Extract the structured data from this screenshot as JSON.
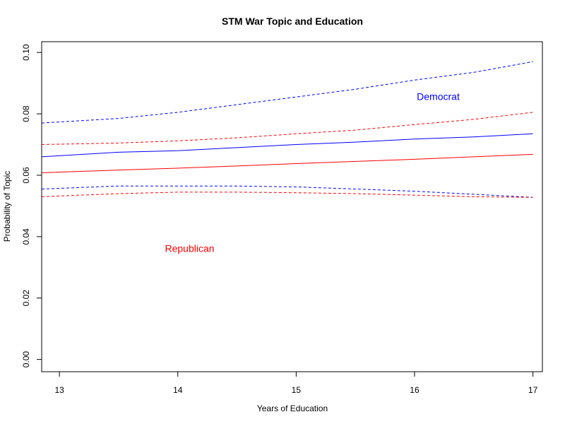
{
  "chart_data": {
    "type": "line",
    "title": "STM War Topic and Education",
    "xlabel": "Years of Education",
    "ylabel": "Probability of Topic",
    "xlim": [
      12.85,
      17.08
    ],
    "ylim": [
      -0.004,
      0.1035
    ],
    "x_ticks": [
      13,
      14,
      15,
      16,
      17
    ],
    "y_ticks": [
      0.0,
      0.02,
      0.04,
      0.06,
      0.08,
      0.1
    ],
    "y_tick_labels": [
      "0.00",
      "0.02",
      "0.04",
      "0.06",
      "0.08",
      "0.10"
    ],
    "grid": false,
    "x": [
      12.85,
      13.5,
      14,
      14.5,
      15,
      15.5,
      16,
      16.5,
      17
    ],
    "series": [
      {
        "name": "Democrat",
        "color": "#0000ff",
        "style": "solid",
        "values": [
          0.066,
          0.0675,
          0.068,
          0.069,
          0.07,
          0.0708,
          0.0718,
          0.0725,
          0.0735
        ]
      },
      {
        "color": "#0000ff",
        "style": "dashed",
        "values": [
          0.077,
          0.0785,
          0.0805,
          0.083,
          0.0855,
          0.088,
          0.091,
          0.0935,
          0.097
        ]
      },
      {
        "color": "#0000ff",
        "style": "dashed",
        "values": [
          0.0555,
          0.0565,
          0.0565,
          0.0565,
          0.0562,
          0.0555,
          0.0548,
          0.0538,
          0.0528
        ]
      },
      {
        "name": "Republican",
        "color": "#ff0000",
        "style": "solid",
        "values": [
          0.0608,
          0.0617,
          0.0623,
          0.063,
          0.0638,
          0.0645,
          0.0652,
          0.066,
          0.0668
        ]
      },
      {
        "color": "#ff0000",
        "style": "dashed",
        "values": [
          0.07,
          0.0705,
          0.0712,
          0.0722,
          0.0735,
          0.0747,
          0.0765,
          0.0782,
          0.0805
        ]
      },
      {
        "color": "#ff0000",
        "style": "dashed",
        "values": [
          0.053,
          0.054,
          0.0545,
          0.0545,
          0.0543,
          0.054,
          0.0535,
          0.053,
          0.0528
        ]
      }
    ],
    "annotations": [
      {
        "text": "Democrat",
        "x": 16.2,
        "y": 0.0845,
        "color": "#0000ff"
      },
      {
        "text": "Republican",
        "x": 14.1,
        "y": 0.035,
        "color": "#ff0000"
      }
    ]
  }
}
